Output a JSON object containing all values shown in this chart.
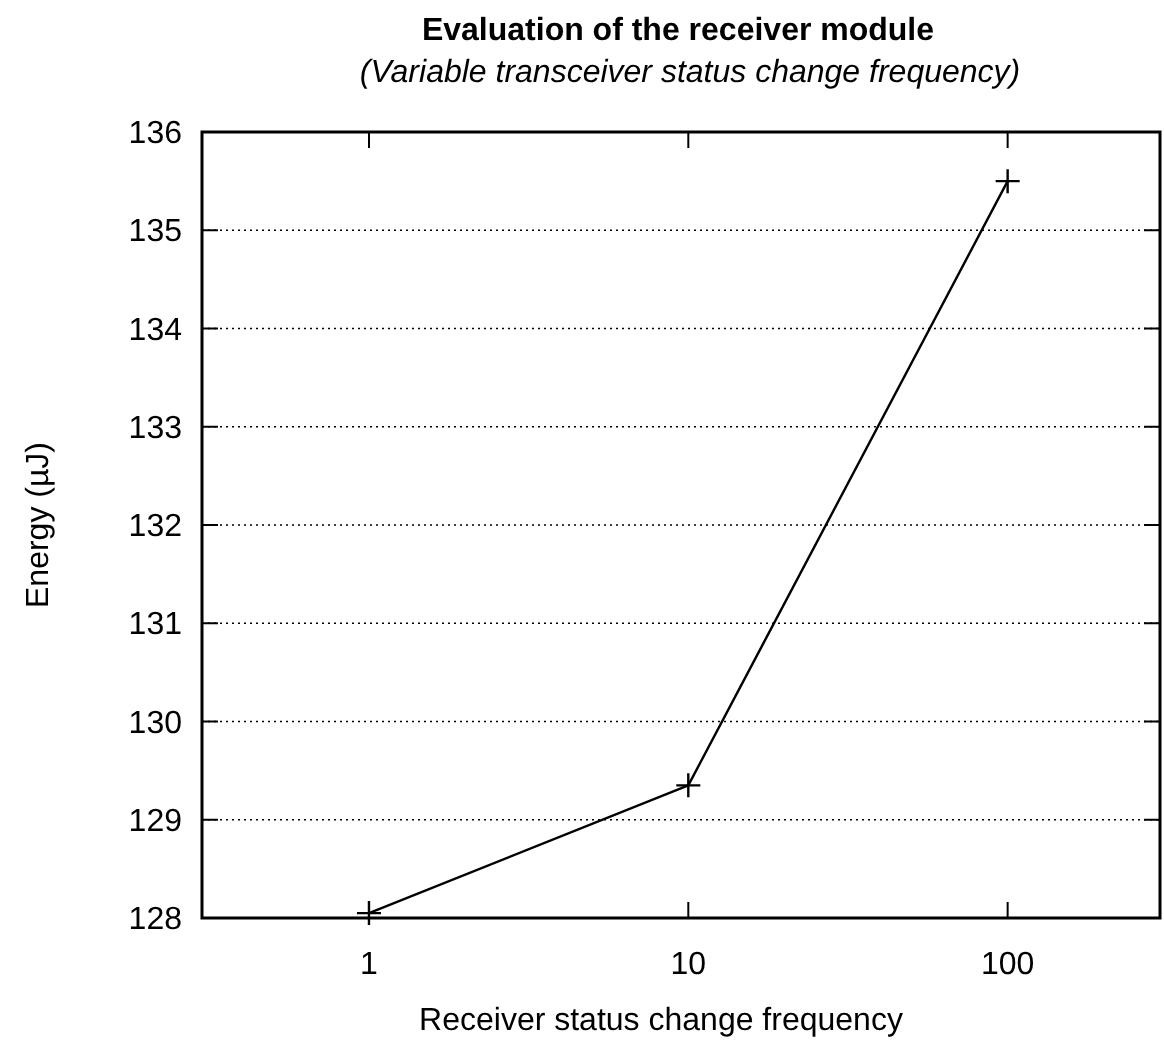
{
  "chart_data": {
    "type": "line",
    "title": "Evaluation of the receiver module",
    "subtitle": "(Variable transceiver status change frequency)",
    "xlabel": "Receiver status change frequency",
    "ylabel": "Energy (µJ)",
    "log": "x",
    "x": [
      1,
      10,
      100
    ],
    "series": [
      {
        "color": "#000000",
        "values": [
          128.05,
          129.35,
          135.5
        ]
      }
    ],
    "xlim": [
      0.3,
      300
    ],
    "xticks": [
      1,
      10,
      100
    ],
    "ylim": [
      128,
      136
    ],
    "yticks": [
      128,
      129,
      130,
      131,
      132,
      133,
      134,
      135,
      136
    ],
    "grid": "y",
    "marker": "cross",
    "line_style": "solid"
  }
}
